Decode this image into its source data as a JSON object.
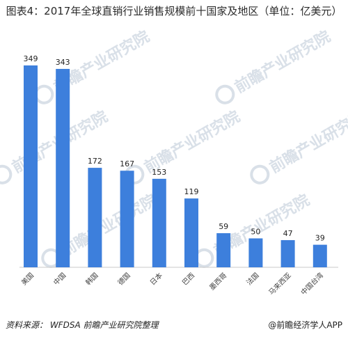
{
  "chart_data": {
    "type": "bar",
    "title": "图表4：2017年全球直销行业销售规模前十国家及地区（单位：亿美元）",
    "categories": [
      "美国",
      "中国",
      "韩国",
      "德国",
      "日本",
      "巴西",
      "墨西哥",
      "法国",
      "马来西亚",
      "中国台湾"
    ],
    "values": [
      349,
      343,
      172,
      167,
      153,
      119,
      59,
      50,
      47,
      39
    ],
    "ylim": [
      0,
      349
    ],
    "grid": false,
    "bar_color": "#3d7fdc"
  },
  "footer": {
    "source": "资料来源： WFDSA 前瞻产业研究院整理",
    "brand": "@前瞻经济学人APP"
  },
  "watermark": {
    "text": "前瞻产业研究院",
    "color": "#d9e0e8"
  }
}
